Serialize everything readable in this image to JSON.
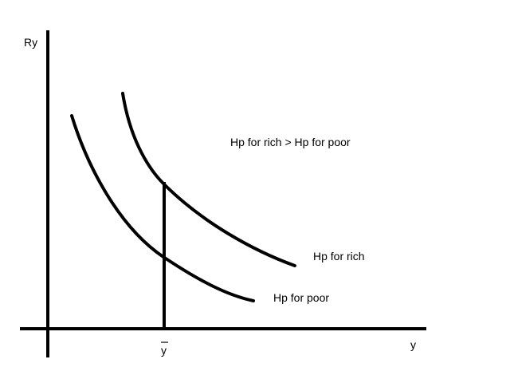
{
  "diagram": {
    "y_axis_label": "Ry",
    "x_axis_label": "y",
    "marker_label": "y",
    "annotation": "Hp for rich > Hp for poor",
    "curves": {
      "rich_label": "Hp for rich",
      "poor_label": "Hp for poor"
    },
    "line_color": "#000000",
    "background": "#ffffff"
  }
}
